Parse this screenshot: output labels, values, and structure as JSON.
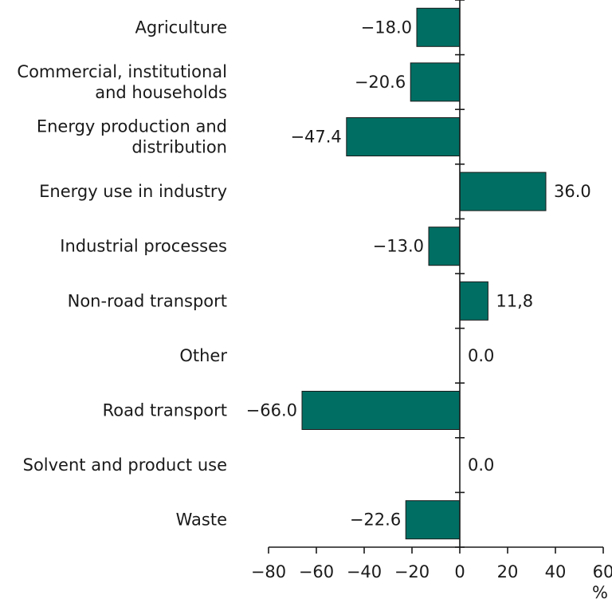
{
  "chart_data": {
    "type": "bar",
    "orientation": "horizontal",
    "categories": [
      [
        "Agriculture"
      ],
      [
        "Commercial, institutional",
        "and households"
      ],
      [
        "Energy production and",
        "distribution"
      ],
      [
        "Energy use in industry"
      ],
      [
        "Industrial processes"
      ],
      [
        "Non-road transport"
      ],
      [
        "Other"
      ],
      [
        "Road transport"
      ],
      [
        "Solvent and product use"
      ],
      [
        "Waste"
      ]
    ],
    "values": [
      -18.0,
      -20.6,
      -47.4,
      36.0,
      -13.0,
      11.8,
      0.0,
      -66.0,
      0.0,
      -22.6
    ],
    "data_labels": [
      "−18.0",
      "−20.6",
      "−47.4",
      "36.0",
      "−13.0",
      "11,8",
      "0.0",
      "−66.0",
      "0.0",
      "−22.6"
    ],
    "xlim": [
      -80,
      60
    ],
    "xticks": [
      -80,
      -60,
      -40,
      -20,
      0,
      20,
      40,
      60
    ],
    "xtick_labels": [
      "−80",
      "−60",
      "−40",
      "−20",
      "0",
      "20",
      "40",
      "60"
    ],
    "xlabel": "%",
    "grid": false,
    "bar_color": "#006e63"
  }
}
